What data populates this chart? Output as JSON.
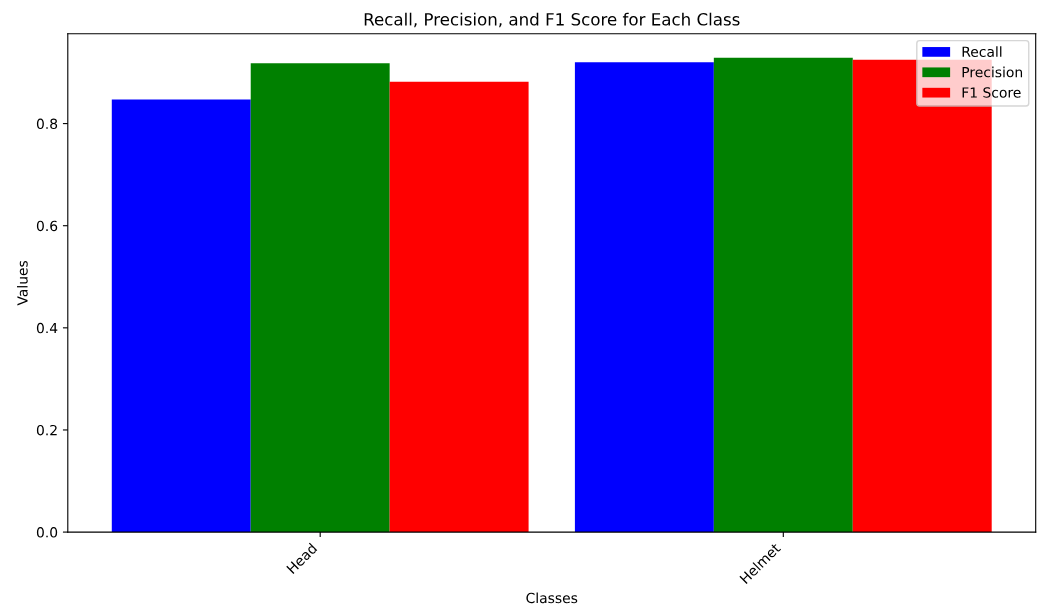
{
  "chart_data": {
    "type": "bar",
    "title": "Recall, Precision, and F1 Score for Each Class",
    "xlabel": "Classes",
    "ylabel": "Values",
    "categories": [
      "Head",
      "Helmet"
    ],
    "series": [
      {
        "name": "Recall",
        "color": "#0000ff",
        "values": [
          0.847,
          0.92
        ]
      },
      {
        "name": "Precision",
        "color": "#008000",
        "values": [
          0.918,
          0.929
        ]
      },
      {
        "name": "F1 Score",
        "color": "#ff0000",
        "values": [
          0.882,
          0.925
        ]
      }
    ],
    "ylim": [
      0,
      0.976
    ],
    "yticks": [
      {
        "value": 0,
        "label": "0.0"
      },
      0.2,
      0.4,
      0.6,
      0.8
    ],
    "legend": "top right",
    "grid": false
  }
}
